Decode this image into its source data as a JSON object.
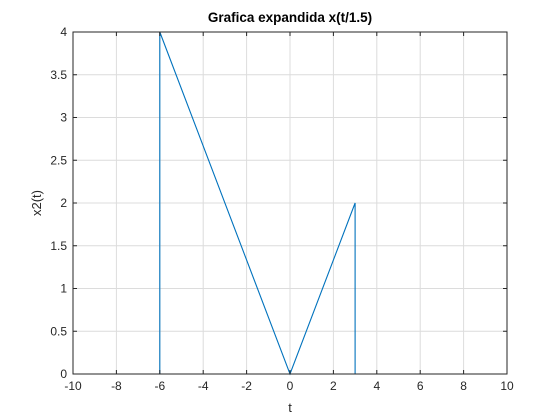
{
  "chart_data": {
    "type": "line",
    "title": "Grafica expandida x(t/1.5)",
    "xlabel": "t",
    "ylabel": "x2(t)",
    "xlim": [
      -10,
      10
    ],
    "ylim": [
      0,
      4
    ],
    "xticks": [
      -10,
      -8,
      -6,
      -4,
      -2,
      0,
      2,
      4,
      6,
      8,
      10
    ],
    "yticks": [
      0,
      0.5,
      1,
      1.5,
      2,
      2.5,
      3,
      3.5,
      4
    ],
    "grid": true,
    "series": [
      {
        "color": "#0072bd",
        "x": [
          -10,
          -6,
          -6,
          0,
          3,
          3,
          10
        ],
        "y": [
          0,
          0,
          4,
          0,
          2,
          0,
          0
        ]
      }
    ]
  }
}
